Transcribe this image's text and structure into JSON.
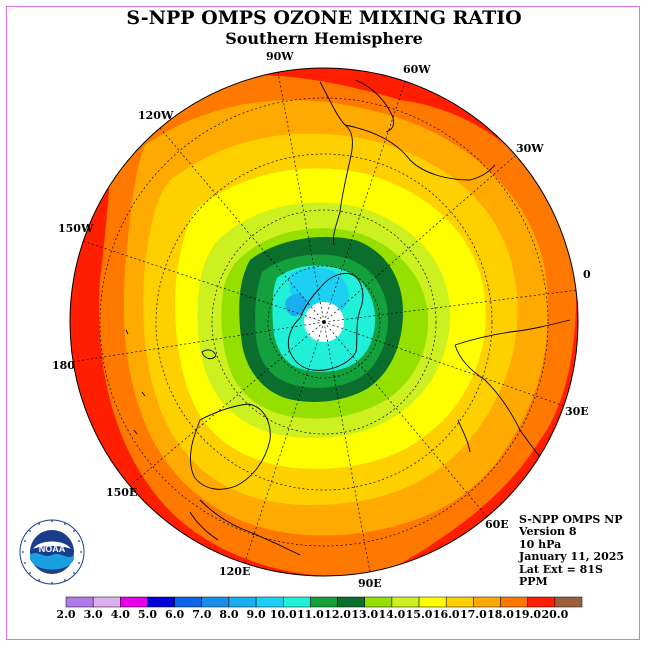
{
  "header": {
    "title": "S-NPP OMPS OZONE MIXING RATIO",
    "subtitle": "Southern Hemisphere"
  },
  "longitude_labels": [
    {
      "text": "90W"
    },
    {
      "text": "60W"
    },
    {
      "text": "120W"
    },
    {
      "text": "30W"
    },
    {
      "text": "150W"
    },
    {
      "text": "0"
    },
    {
      "text": "180"
    },
    {
      "text": "30E"
    },
    {
      "text": "150E"
    },
    {
      "text": "60E"
    },
    {
      "text": "120E"
    },
    {
      "text": "90E"
    }
  ],
  "info_block": {
    "line1": "S-NPP OMPS NP",
    "line2": "Version 8",
    "line3": "10 hPa",
    "line4": "January 11, 2025",
    "line5": "Lat Ext = 81S",
    "line6": "PPM"
  },
  "logo": {
    "text": "NOAA",
    "ring_text": "NATIONAL OCEANIC AND ATMOSPHERIC ADMINISTRATION · U.S. DEPARTMENT OF COMMERCE",
    "icon": "noaa-logo"
  },
  "colorbar": {
    "ticks": [
      "2.0",
      "3.0",
      "4.0",
      "5.0",
      "6.0",
      "7.0",
      "8.0",
      "9.0",
      "10.0",
      "11.0",
      "12.0",
      "13.0",
      "14.0",
      "15.0",
      "16.0",
      "17.0",
      "18.0",
      "19.0",
      "20.0"
    ],
    "colors": [
      "#b07ae8",
      "#dcb0ee",
      "#e600e6",
      "#0000d8",
      "#0a64e8",
      "#1890ea",
      "#1aaef0",
      "#1cd0f4",
      "#20f0d8",
      "#14a03c",
      "#0c6e2c",
      "#96e000",
      "#cdf020",
      "#ffff00",
      "#ffd000",
      "#ffaa00",
      "#ff7800",
      "#ff1e00",
      "#996040"
    ]
  },
  "chart_data": {
    "type": "heatmap",
    "projection": "south-polar-stereographic",
    "title": "S-NPP OMPS OZONE MIXING RATIO",
    "subtitle": "Southern Hemisphere",
    "level": "10 hPa",
    "date": "January 11, 2025",
    "units": "PPM",
    "lat_extent": "81S",
    "scale_min": 2.0,
    "scale_max": 20.0,
    "contour_levels_ppm": [
      10.0,
      11.0,
      12.0,
      13.0,
      14.0,
      15.0,
      16.0,
      17.0,
      18.0,
      19.0
    ],
    "no_data_region": "polar cap south of 81S",
    "grid": true
  }
}
